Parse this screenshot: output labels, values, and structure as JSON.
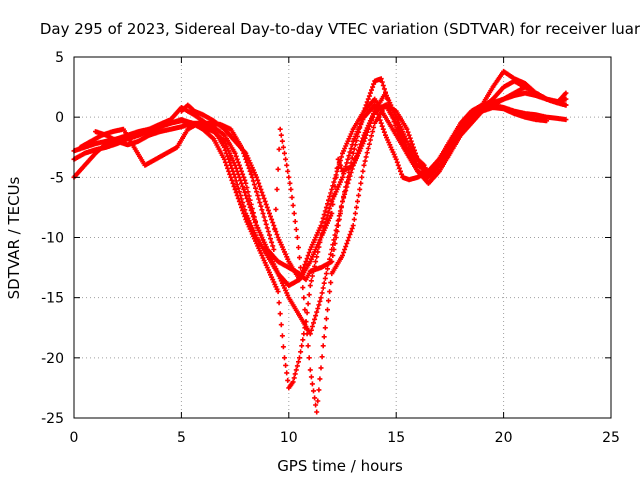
{
  "chart_data": {
    "type": "scatter",
    "title": "Day 295 of 2023, Sidereal Day-to-day VTEC variation (SDTVAR) for receiver luar",
    "xlabel": "GPS time / hours",
    "ylabel": "SDTVAR / TECUs",
    "xlim": [
      0,
      25
    ],
    "ylim": [
      -25,
      5
    ],
    "xticks": [
      0,
      5,
      10,
      15,
      20,
      25
    ],
    "yticks": [
      5,
      0,
      -5,
      -10,
      -15,
      -20,
      -25
    ],
    "grid": true,
    "marker": "plus",
    "color": "#ff0000",
    "series": [
      {
        "x": [
          0.0,
          0.5,
          1.0,
          1.5,
          2.0,
          2.5,
          3.0,
          3.5,
          4.0,
          4.5,
          5.0,
          5.5,
          6.0,
          6.5,
          7.0,
          7.5,
          8.0,
          8.5,
          9.0,
          9.5,
          10.0,
          10.5,
          11.0,
          11.5,
          12.0,
          12.5,
          13.0,
          13.5,
          14.0,
          14.5,
          15.0,
          15.5,
          16.0,
          16.5,
          17.0,
          17.5,
          18.0,
          18.5,
          19.0,
          19.5,
          20.0,
          20.5,
          21.0,
          21.5,
          22.0,
          22.5,
          22.9
        ],
        "y": [
          -5.0,
          -4.0,
          -3.0,
          -2.2,
          -2.0,
          -1.8,
          -1.5,
          -1.2,
          -0.8,
          -0.5,
          -0.3,
          -0.5,
          -0.8,
          -1.2,
          -2.0,
          -4.0,
          -6.5,
          -9.0,
          -11.0,
          -13.0,
          -14.0,
          -13.5,
          -11.0,
          -9.0,
          -6.0,
          -3.0,
          -1.0,
          0.5,
          1.5,
          0.0,
          -1.5,
          -3.0,
          -4.5,
          -5.0,
          -4.0,
          -2.5,
          -1.0,
          0.0,
          0.8,
          1.0,
          0.8,
          0.5,
          0.3,
          0.2,
          0.0,
          -0.1,
          -0.2
        ]
      },
      {
        "x": [
          0.0,
          0.5,
          1.0,
          1.5,
          2.0,
          2.5,
          3.0,
          3.5,
          4.0,
          4.5,
          5.0,
          5.5,
          6.0,
          6.5,
          7.0,
          7.5,
          8.0,
          8.5,
          9.0,
          9.5,
          10.0,
          10.5,
          11.0,
          11.5,
          12.0,
          12.5,
          13.0,
          13.5,
          14.0,
          14.3,
          14.6,
          15.0,
          15.5,
          16.0,
          16.5,
          17.0,
          17.5,
          18.0,
          18.5,
          19.0,
          19.5,
          20.0,
          20.5,
          21.0,
          21.5,
          22.0,
          22.5,
          22.9
        ],
        "y": [
          -3.5,
          -3.0,
          -2.7,
          -2.5,
          -2.2,
          -1.8,
          -1.5,
          -1.0,
          -0.6,
          -0.2,
          0.8,
          0.3,
          -0.3,
          -1.0,
          -2.5,
          -5.0,
          -8.0,
          -10.0,
          -11.5,
          -13.0,
          -15.0,
          -16.5,
          -18.0,
          -15.0,
          -11.0,
          -7.0,
          -3.0,
          0.5,
          3.0,
          3.2,
          1.5,
          -1.0,
          -3.0,
          -4.5,
          -5.5,
          -4.5,
          -3.0,
          -1.5,
          -0.2,
          0.8,
          1.5,
          2.5,
          3.0,
          2.5,
          2.0,
          1.5,
          1.2,
          1.0
        ]
      },
      {
        "x": [
          0.0,
          0.5,
          1.0,
          1.5,
          2.0,
          2.5,
          3.0,
          3.5,
          4.0,
          4.5,
          5.0,
          5.5,
          6.0,
          6.5,
          7.0,
          7.5,
          8.0,
          8.5,
          9.0,
          9.5,
          9.8,
          10.0,
          10.2,
          10.5,
          10.8,
          11.0,
          11.5,
          12.0,
          12.5,
          13.0,
          13.5,
          14.0,
          14.5,
          15.0,
          15.3,
          15.6,
          16.0,
          16.5,
          17.0,
          17.5,
          18.0,
          18.5,
          19.0,
          19.5,
          20.0,
          20.5,
          21.0,
          21.5,
          22.0,
          22.5,
          22.9
        ],
        "y": [
          -2.8,
          -2.5,
          -2.2,
          -2.0,
          -1.8,
          -1.5,
          -1.2,
          -1.0,
          -0.8,
          -0.5,
          -0.2,
          -0.5,
          -1.0,
          -1.8,
          -3.5,
          -6.0,
          -8.5,
          -10.5,
          -12.5,
          -14.5,
          -20.0,
          -22.5,
          -22.0,
          -20.0,
          -17.0,
          -14.0,
          -10.0,
          -7.0,
          -5.0,
          -2.0,
          0.0,
          1.0,
          -1.5,
          -3.5,
          -5.0,
          -5.2,
          -5.0,
          -4.5,
          -3.5,
          -2.0,
          -0.5,
          0.5,
          1.0,
          1.2,
          1.5,
          1.8,
          2.0,
          1.8,
          1.5,
          1.3,
          1.5
        ]
      },
      {
        "x": [
          0.3,
          0.8,
          1.3,
          1.8,
          2.3,
          2.8,
          3.3,
          3.8,
          4.3,
          4.8,
          5.3,
          5.8,
          6.3,
          6.8,
          7.3,
          7.8,
          8.3,
          8.8,
          9.3,
          9.6,
          9.8,
          10.1,
          10.4,
          10.7,
          11.0,
          11.3,
          11.6,
          12.0,
          12.5,
          13.0,
          13.5,
          14.0,
          14.5,
          15.0,
          15.5,
          16.0,
          16.5,
          17.0,
          17.5,
          18.0,
          18.5,
          19.0,
          19.5,
          20.0,
          20.5,
          21.0,
          21.5,
          22.0,
          22.5,
          22.9
        ],
        "y": [
          -2.5,
          -2.0,
          -1.5,
          -1.2,
          -1.0,
          -2.5,
          -4.0,
          -3.5,
          -3.0,
          -2.5,
          -1.0,
          -0.5,
          -0.5,
          -0.6,
          -1.0,
          -2.5,
          -5.0,
          -8.0,
          -11.0,
          -1.0,
          -3.0,
          -6.0,
          -10.0,
          -15.0,
          -21.0,
          -24.5,
          -19.0,
          -13.0,
          -11.5,
          -9.0,
          -4.0,
          -0.5,
          1.0,
          0.5,
          -1.0,
          -3.5,
          -5.5,
          -4.5,
          -3.0,
          -1.5,
          -0.5,
          0.5,
          1.0,
          1.5,
          2.0,
          2.5,
          2.0,
          1.5,
          1.2,
          1.0
        ]
      },
      {
        "x": [
          5.0,
          5.3,
          5.6,
          6.0,
          6.5,
          7.0,
          7.5,
          8.0,
          8.5,
          9.0,
          9.5,
          10.0,
          10.5,
          11.0,
          11.5,
          12.0,
          12.3,
          12.5,
          13.0,
          13.5,
          14.0,
          14.5,
          15.0,
          15.5,
          16.0,
          16.3,
          16.5,
          17.0,
          17.5,
          18.0,
          18.5,
          19.0,
          19.5,
          20.0,
          20.5,
          21.0,
          21.5,
          22.0
        ],
        "y": [
          0.5,
          1.0,
          0.5,
          0.2,
          -0.3,
          -1.0,
          -2.0,
          -3.0,
          -5.0,
          -7.5,
          -10.0,
          -12.0,
          -13.5,
          -12.0,
          -10.0,
          -8.0,
          -3.5,
          -4.5,
          -4.0,
          -2.0,
          0.5,
          2.0,
          0.0,
          -2.0,
          -3.5,
          -4.0,
          -4.8,
          -4.0,
          -2.5,
          -1.0,
          0.0,
          0.5,
          0.8,
          0.7,
          0.3,
          0.0,
          -0.2,
          -0.3
        ]
      },
      {
        "x": [
          1.0,
          1.5,
          2.0,
          2.5,
          3.0,
          3.5,
          4.0,
          4.5,
          5.0,
          5.5,
          6.0,
          6.5,
          7.0,
          7.5,
          8.0,
          8.5,
          9.0,
          9.5,
          10.0,
          10.5,
          10.8,
          11.0,
          11.5,
          12.0,
          12.5,
          13.0,
          13.5,
          14.0,
          14.5,
          15.0,
          15.5,
          16.0,
          16.5,
          17.0,
          17.5,
          18.0,
          18.5,
          19.0,
          19.5,
          20.0,
          20.5,
          21.0,
          21.5,
          22.0,
          22.5,
          22.9
        ],
        "y": [
          -1.2,
          -1.5,
          -2.0,
          -2.3,
          -2.0,
          -1.5,
          -1.2,
          -1.0,
          -0.8,
          -0.5,
          -0.5,
          -0.8,
          -1.5,
          -3.0,
          -5.5,
          -9.0,
          -11.0,
          -12.0,
          -12.5,
          -13.0,
          -13.5,
          -12.8,
          -12.5,
          -12.0,
          -7.0,
          -4.0,
          -1.5,
          0.5,
          1.0,
          -0.5,
          -2.5,
          -4.0,
          -4.5,
          -3.5,
          -2.0,
          -0.8,
          0.3,
          1.0,
          2.5,
          3.8,
          3.2,
          2.8,
          2.0,
          1.5,
          1.2,
          2.0
        ]
      }
    ]
  }
}
